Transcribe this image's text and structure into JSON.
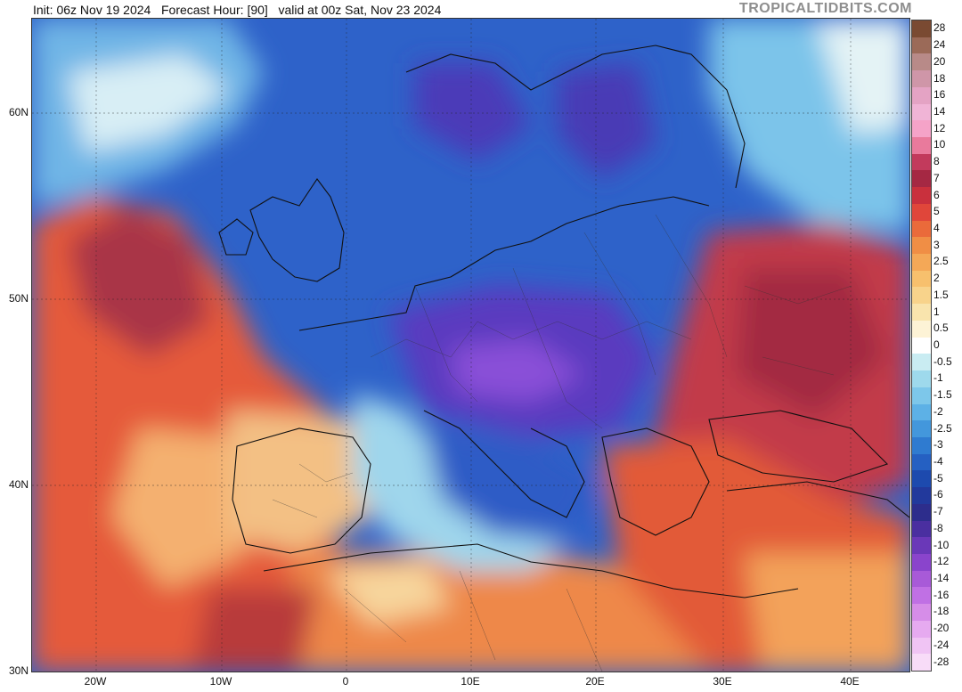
{
  "header": {
    "run_info": "Init: 06z Nov 19 2024   Forecast Hour: [90]   valid at 00z Sat, Nov 23 2024",
    "brand": "TROPICALTIDBITS.COM"
  },
  "map": {
    "latitudes": [
      "60N",
      "50N",
      "40N",
      "30N"
    ],
    "longitudes": [
      "20W",
      "10W",
      "0",
      "10E",
      "20E",
      "30E",
      "40E"
    ],
    "colors": {
      "cold_deep": "#6a3fc8",
      "cold": "#2f5fcb",
      "cool": "#4a9be0",
      "neutral": "#e9f4f7",
      "warm": "#f0a35a",
      "hot": "#d9533a",
      "very_hot": "#a8324a"
    }
  },
  "colorbar": {
    "labels": [
      "28",
      "24",
      "20",
      "18",
      "16",
      "14",
      "12",
      "10",
      "8",
      "7",
      "6",
      "5",
      "4",
      "3",
      "2.5",
      "2",
      "1.5",
      "1",
      "0.5",
      "0",
      "-0.5",
      "-1",
      "-1.5",
      "-2",
      "-2.5",
      "-3",
      "-4",
      "-5",
      "-6",
      "-7",
      "-8",
      "-10",
      "-12",
      "-14",
      "-16",
      "-18",
      "-20",
      "-24",
      "-28"
    ],
    "colors": [
      "#7a4a32",
      "#9b6a58",
      "#b88a88",
      "#cf96a8",
      "#e4a3c4",
      "#f0b4d6",
      "#f5a3c8",
      "#e97a9c",
      "#c23a5c",
      "#a52843",
      "#c9303d",
      "#e0463a",
      "#ea6a3a",
      "#f08e45",
      "#f4a857",
      "#f7c06d",
      "#f8d38b",
      "#f9e4ad",
      "#fdf3d6",
      "#ffffff",
      "#c9ecf2",
      "#9ed9ec",
      "#7dc7ea",
      "#5db1e6",
      "#4397dc",
      "#2f7bd0",
      "#2560c2",
      "#1d4aae",
      "#22399c",
      "#2d2d8c",
      "#4a2fa0",
      "#6a38b8",
      "#8a44cc",
      "#a85ad8",
      "#c070e4",
      "#d68de8",
      "#e6aaf0",
      "#f0c4f4",
      "#f8dcf8"
    ]
  }
}
